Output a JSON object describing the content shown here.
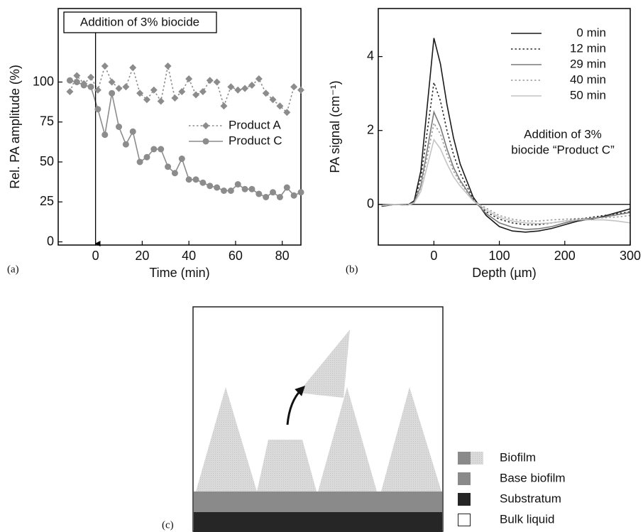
{
  "chart_data": [
    {
      "type": "line",
      "panel_label": "(a)",
      "xlabel": "Time (min)",
      "ylabel": "Rel. PA amplitude (%)",
      "x": [
        -11,
        -8,
        -5,
        -2,
        1,
        4,
        7,
        10,
        13,
        16,
        19,
        22,
        25,
        28,
        31,
        34,
        37,
        40,
        43,
        46,
        49,
        52,
        55,
        58,
        61,
        64,
        67,
        70,
        73,
        76,
        79,
        82,
        85,
        88
      ],
      "series": [
        {
          "name": "Product A",
          "color": "#8c8c8c",
          "dash": "dotted",
          "marker": "diamond",
          "values": [
            94,
            104,
            99,
            103,
            95,
            110,
            100,
            96,
            97,
            109,
            93,
            89,
            95,
            88,
            110,
            90,
            94,
            102,
            92,
            94,
            101,
            100,
            85,
            97,
            95,
            96,
            98,
            102,
            93,
            89,
            85,
            81,
            97,
            95
          ]
        },
        {
          "name": "Product C",
          "color": "#8c8c8c",
          "dash": "solid",
          "marker": "circle",
          "values": [
            101,
            100,
            98,
            97,
            83,
            67,
            93,
            72,
            61,
            69,
            50,
            53,
            58,
            58,
            47,
            43,
            52,
            39,
            39,
            37,
            35,
            34,
            32,
            32,
            36,
            33,
            33,
            30,
            28,
            31,
            28,
            34,
            29,
            31
          ]
        }
      ],
      "xlim": [
        -16,
        88
      ],
      "ylim": [
        -2,
        146
      ],
      "xticks": [
        0,
        20,
        40,
        60,
        80
      ],
      "yticks": [
        0,
        25,
        50,
        75,
        100
      ],
      "legend": "right",
      "annotation": {
        "text": "Addition of 3% biocide",
        "x": 0
      }
    },
    {
      "type": "line",
      "panel_label": "(b)",
      "xlabel": "Depth (µm)",
      "ylabel": "PA signal (cm⁻¹)",
      "x": [
        -80,
        -60,
        -40,
        -30,
        -20,
        -10,
        0,
        10,
        20,
        30,
        40,
        60,
        80,
        100,
        120,
        140,
        160,
        180,
        200,
        220,
        240,
        260,
        280,
        300
      ],
      "series": [
        {
          "name": "0 min",
          "color": "#1a1a1a",
          "dash": "solid",
          "values": [
            -0.05,
            0,
            -0.02,
            0.1,
            0.9,
            2.7,
            4.5,
            3.8,
            2.7,
            1.8,
            1.1,
            0.2,
            -0.3,
            -0.6,
            -0.72,
            -0.75,
            -0.72,
            -0.65,
            -0.55,
            -0.45,
            -0.4,
            -0.32,
            -0.22,
            -0.12
          ]
        },
        {
          "name": "12 min",
          "color": "#2a2a2a",
          "dash": "dotted",
          "values": [
            -0.03,
            0,
            -0.02,
            0.08,
            0.7,
            2.0,
            3.3,
            2.8,
            2.0,
            1.35,
            0.85,
            0.15,
            -0.2,
            -0.4,
            -0.5,
            -0.55,
            -0.55,
            -0.5,
            -0.45,
            -0.4,
            -0.35,
            -0.3,
            -0.25,
            -0.2
          ]
        },
        {
          "name": "29 min",
          "color": "#7a7a7a",
          "dash": "solid",
          "values": [
            -0.04,
            0,
            -0.02,
            0.06,
            0.5,
            1.5,
            2.5,
            2.1,
            1.5,
            1.0,
            0.65,
            0.12,
            -0.25,
            -0.5,
            -0.62,
            -0.68,
            -0.66,
            -0.6,
            -0.5,
            -0.42,
            -0.38,
            -0.34,
            -0.28,
            -0.22
          ]
        },
        {
          "name": "40 min",
          "color": "#9a9a9a",
          "dash": "dotted",
          "values": [
            -0.03,
            0,
            -0.02,
            0.05,
            0.45,
            1.3,
            2.2,
            1.9,
            1.35,
            0.9,
            0.6,
            0.1,
            -0.1,
            -0.3,
            -0.4,
            -0.45,
            -0.45,
            -0.42,
            -0.4,
            -0.38,
            -0.38,
            -0.36,
            -0.34,
            -0.3
          ]
        },
        {
          "name": "50 min",
          "color": "#c4c4c4",
          "dash": "solid",
          "values": [
            -0.02,
            0,
            -0.02,
            0.04,
            0.35,
            1.05,
            1.75,
            1.5,
            1.1,
            0.75,
            0.5,
            0.1,
            -0.15,
            -0.35,
            -0.45,
            -0.5,
            -0.52,
            -0.5,
            -0.45,
            -0.42,
            -0.42,
            -0.42,
            -0.45,
            -0.5
          ]
        }
      ],
      "xlim": [
        -85,
        300
      ],
      "ylim": [
        -1.1,
        5.3
      ],
      "xticks": [
        0,
        100,
        200,
        300
      ],
      "yticks": [
        0,
        2,
        4
      ],
      "zero_line": true,
      "legend": "upper right",
      "annotation_lines": [
        "Addition of 3%",
        "biocide “Product C”"
      ]
    }
  ],
  "diagram": {
    "panel_label": "(c)",
    "legend": [
      "Biofilm",
      "Base biofilm",
      "Substratum",
      "Bulk liquid"
    ]
  }
}
